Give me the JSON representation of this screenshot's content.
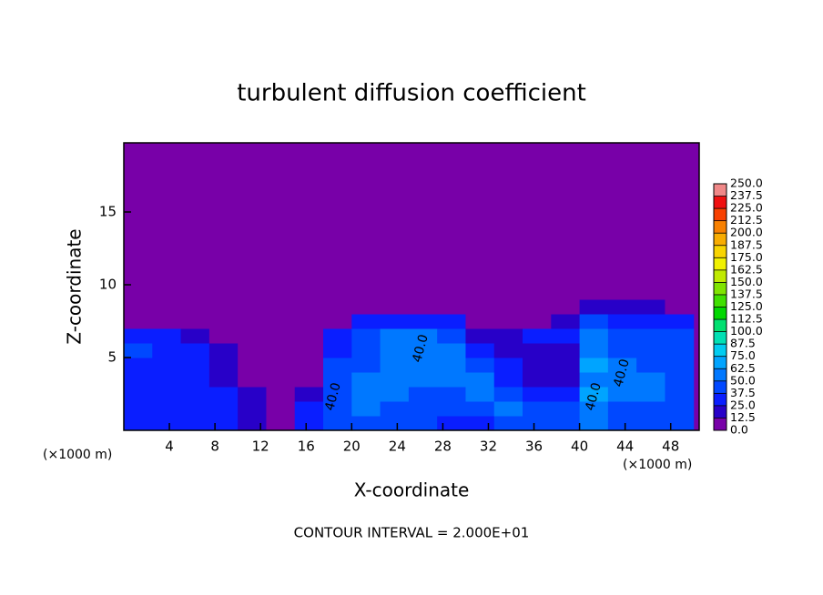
{
  "chart_data": {
    "type": "contour",
    "title": "turbulent diffusion coefficient",
    "x_label": "X-coordinate",
    "y_label": "Z-coordinate",
    "x_unit": "(×1000 m)",
    "y_unit": "(×1000 m)",
    "footer": "CONTOUR INTERVAL = 2.000E+01",
    "xlim": [
      0,
      50.5
    ],
    "ylim": [
      0,
      19.75
    ],
    "xticks": [
      4,
      8,
      12,
      16,
      20,
      24,
      28,
      32,
      36,
      40,
      44,
      48
    ],
    "yticks": [
      5,
      10,
      15
    ],
    "contour_labels": [
      "40.0",
      "40.0",
      "40.0",
      "40.0"
    ],
    "colorbar": {
      "ticks": [
        {
          "value": 0,
          "label": "0.0"
        },
        {
          "value": 12.5,
          "label": "12.5"
        },
        {
          "value": 25,
          "label": "25.0"
        },
        {
          "value": 37.5,
          "label": "37.5"
        },
        {
          "value": 50,
          "label": "50.0"
        },
        {
          "value": 62.5,
          "label": "62.5"
        },
        {
          "value": 75,
          "label": "75.0"
        },
        {
          "value": 87.5,
          "label": "87.5"
        },
        {
          "value": 100,
          "label": "100.0"
        },
        {
          "value": 112.5,
          "label": "112.5"
        },
        {
          "value": 125,
          "label": "125.0"
        },
        {
          "value": 137.5,
          "label": "137.5"
        },
        {
          "value": 150,
          "label": "150.0"
        },
        {
          "value": 162.5,
          "label": "162.5"
        },
        {
          "value": 175,
          "label": "175.0"
        },
        {
          "value": 187.5,
          "label": "187.5"
        },
        {
          "value": 200,
          "label": "200.0"
        },
        {
          "value": 212.5,
          "label": "212.5"
        },
        {
          "value": 225,
          "label": "225.0"
        },
        {
          "value": 237.5,
          "label": "237.5"
        },
        {
          "value": 250,
          "label": "250.0"
        }
      ],
      "colors": [
        "#7800a8",
        "#2800c8",
        "#0a1eff",
        "#0048ff",
        "#0078ff",
        "#00a4ff",
        "#00ccf0",
        "#00e0b4",
        "#00e070",
        "#00d800",
        "#40e000",
        "#80e400",
        "#c0ea00",
        "#f0f000",
        "#f8d400",
        "#f8ac00",
        "#f88000",
        "#f84000",
        "#f01010",
        "#f08888"
      ]
    },
    "field": {
      "xbins": [
        0,
        2.5,
        5,
        7.5,
        10,
        12.5,
        15,
        17.5,
        20,
        22.5,
        25,
        27.5,
        30,
        32.5,
        35,
        37.5,
        40,
        42.5,
        45,
        47.5,
        50
      ],
      "zbins": [
        0,
        1,
        2,
        3,
        4,
        5,
        6,
        7,
        8,
        9,
        10
      ],
      "values": [
        [
          35,
          35,
          30,
          30,
          20,
          10,
          30,
          40,
          45,
          40,
          40,
          35,
          35,
          40,
          40,
          40,
          55,
          45,
          40,
          40
        ],
        [
          35,
          30,
          30,
          25,
          20,
          10,
          25,
          40,
          50,
          45,
          45,
          40,
          45,
          55,
          45,
          40,
          60,
          45,
          45,
          40
        ],
        [
          30,
          30,
          25,
          25,
          15,
          5,
          15,
          40,
          55,
          50,
          45,
          45,
          55,
          45,
          30,
          30,
          65,
          50,
          55,
          45
        ],
        [
          30,
          25,
          25,
          20,
          10,
          5,
          10,
          45,
          50,
          55,
          55,
          50,
          50,
          35,
          20,
          20,
          60,
          50,
          55,
          45
        ],
        [
          35,
          30,
          25,
          20,
          10,
          5,
          10,
          40,
          45,
          50,
          60,
          55,
          40,
          25,
          15,
          15,
          65,
          50,
          45,
          40
        ],
        [
          40,
          30,
          25,
          15,
          5,
          5,
          10,
          35,
          45,
          55,
          60,
          50,
          30,
          20,
          15,
          20,
          60,
          45,
          45,
          40
        ],
        [
          35,
          30,
          20,
          10,
          5,
          5,
          5,
          25,
          45,
          60,
          55,
          45,
          20,
          15,
          25,
          30,
          55,
          45,
          45,
          40
        ],
        [
          10,
          5,
          5,
          5,
          5,
          0,
          5,
          10,
          30,
          35,
          35,
          25,
          5,
          5,
          10,
          20,
          40,
          35,
          35,
          30
        ],
        [
          0,
          0,
          0,
          0,
          0,
          0,
          0,
          0,
          0,
          0,
          0,
          0,
          0,
          0,
          0,
          0,
          20,
          15,
          20,
          0
        ],
        [
          0,
          0,
          0,
          0,
          0,
          0,
          0,
          0,
          0,
          0,
          0,
          0,
          0,
          0,
          0,
          0,
          5,
          10,
          5,
          0
        ]
      ]
    }
  }
}
